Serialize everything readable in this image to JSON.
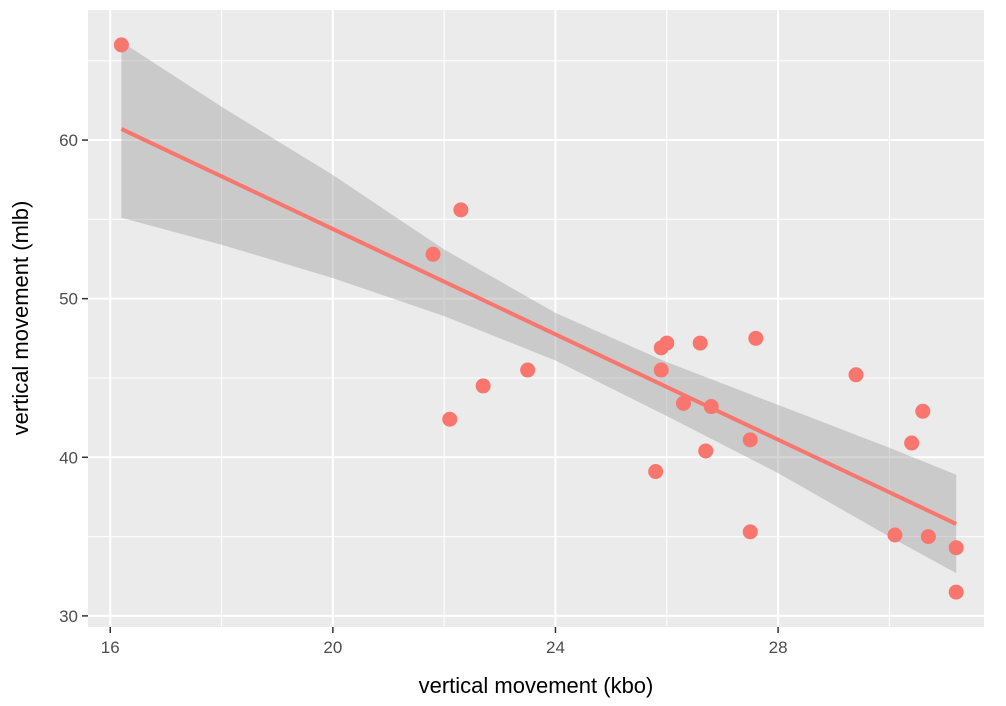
{
  "chart_data": {
    "type": "scatter",
    "title": "",
    "xlabel": "vertical movement (kbo)",
    "ylabel": "vertical movement (mlb)",
    "xlim": [
      15.6,
      31.7
    ],
    "ylim": [
      29.3,
      68.2
    ],
    "x_ticks": [
      16,
      20,
      24,
      28
    ],
    "y_ticks": [
      30,
      40,
      50,
      60
    ],
    "x_tick_labels": [
      "16",
      "20",
      "24",
      "28"
    ],
    "y_tick_labels": [
      "30",
      "40",
      "50",
      "60"
    ],
    "grid": true,
    "points": [
      {
        "x": 16.2,
        "y": 66.0
      },
      {
        "x": 21.8,
        "y": 52.8
      },
      {
        "x": 22.3,
        "y": 55.6
      },
      {
        "x": 22.1,
        "y": 42.4
      },
      {
        "x": 22.7,
        "y": 44.5
      },
      {
        "x": 23.5,
        "y": 45.5
      },
      {
        "x": 25.8,
        "y": 39.1
      },
      {
        "x": 25.9,
        "y": 46.9
      },
      {
        "x": 25.9,
        "y": 45.5
      },
      {
        "x": 26.0,
        "y": 47.2
      },
      {
        "x": 26.3,
        "y": 43.4
      },
      {
        "x": 26.6,
        "y": 47.2
      },
      {
        "x": 26.7,
        "y": 40.4
      },
      {
        "x": 26.8,
        "y": 43.2
      },
      {
        "x": 27.5,
        "y": 41.1
      },
      {
        "x": 27.5,
        "y": 35.3
      },
      {
        "x": 27.6,
        "y": 47.5
      },
      {
        "x": 29.4,
        "y": 45.2
      },
      {
        "x": 30.1,
        "y": 35.1
      },
      {
        "x": 30.4,
        "y": 40.9
      },
      {
        "x": 30.6,
        "y": 42.9
      },
      {
        "x": 30.7,
        "y": 35.0
      },
      {
        "x": 31.2,
        "y": 34.3
      },
      {
        "x": 31.2,
        "y": 31.5
      }
    ],
    "fit_line": {
      "x": [
        16.2,
        31.2
      ],
      "y": [
        60.7,
        35.8
      ]
    },
    "confidence_band": {
      "x": [
        16.2,
        18.0,
        20.0,
        22.0,
        24.0,
        26.0,
        28.0,
        30.0,
        31.2
      ],
      "lower": [
        55.1,
        53.4,
        51.3,
        48.9,
        46.1,
        42.6,
        39.0,
        35.0,
        32.7
      ],
      "upper": [
        66.2,
        62.1,
        57.8,
        53.1,
        49.1,
        46.0,
        43.3,
        40.6,
        38.9
      ]
    },
    "colors": {
      "points": "#f8766d",
      "fit_line": "#f8766d",
      "band": "#999999",
      "panel": "#ebebeb",
      "grid": "#ffffff"
    }
  }
}
